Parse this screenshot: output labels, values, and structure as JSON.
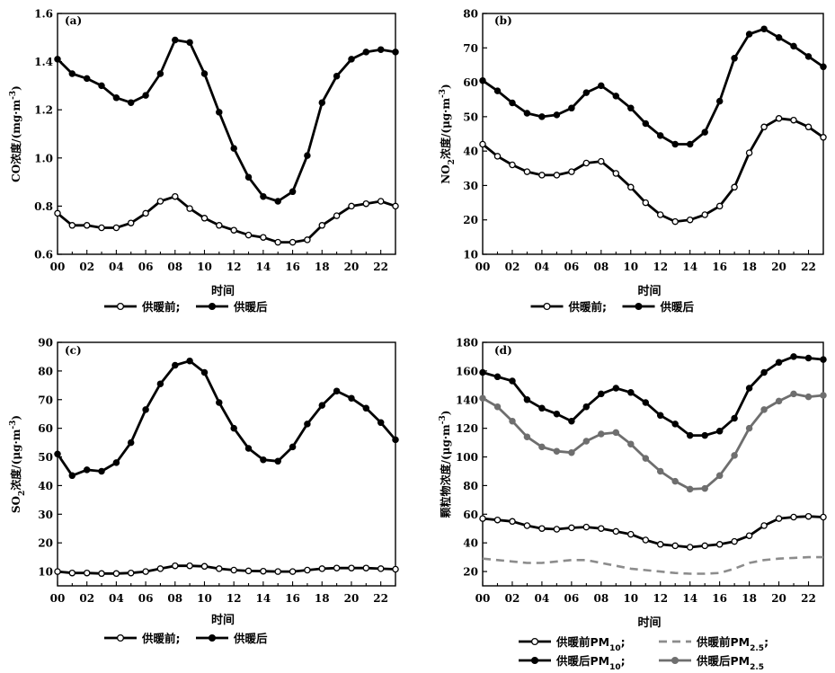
{
  "chart_data": [
    {
      "panel": "(a)",
      "type": "line",
      "xlabel": "时间",
      "ylabel": "CO浓度/(mg·m⁻³)",
      "ylim": [
        0.6,
        1.6
      ],
      "yticks": [
        "0.6",
        "0.8",
        "1.0",
        "1.2",
        "1.4",
        "1.6"
      ],
      "x": [
        0,
        1,
        2,
        3,
        4,
        5,
        6,
        7,
        8,
        9,
        10,
        11,
        12,
        13,
        14,
        15,
        16,
        17,
        18,
        19,
        20,
        21,
        22,
        23
      ],
      "xticks": [
        "00",
        "02",
        "04",
        "06",
        "08",
        "10",
        "12",
        "14",
        "16",
        "18",
        "20",
        "22"
      ],
      "series": [
        {
          "name": "供暖前;",
          "color": "#000000",
          "marker": "open",
          "values": [
            0.77,
            0.72,
            0.72,
            0.71,
            0.71,
            0.73,
            0.77,
            0.82,
            0.84,
            0.79,
            0.75,
            0.72,
            0.7,
            0.68,
            0.67,
            0.65,
            0.65,
            0.66,
            0.72,
            0.76,
            0.8,
            0.81,
            0.82,
            0.8
          ]
        },
        {
          "name": "供暖后",
          "color": "#000000",
          "marker": "filled",
          "values": [
            1.41,
            1.35,
            1.33,
            1.3,
            1.25,
            1.23,
            1.26,
            1.35,
            1.49,
            1.48,
            1.35,
            1.19,
            1.04,
            0.92,
            0.84,
            0.82,
            0.86,
            1.01,
            1.23,
            1.34,
            1.41,
            1.44,
            1.45,
            1.44
          ]
        }
      ],
      "legend": [
        "供暖前;",
        "供暖后"
      ]
    },
    {
      "panel": "(b)",
      "type": "line",
      "xlabel": "时间",
      "ylabel": "NO₂浓度/(μg·m⁻³)",
      "ylim": [
        10,
        80
      ],
      "yticks": [
        "10",
        "20",
        "30",
        "40",
        "50",
        "60",
        "70",
        "80"
      ],
      "x": [
        0,
        1,
        2,
        3,
        4,
        5,
        6,
        7,
        8,
        9,
        10,
        11,
        12,
        13,
        14,
        15,
        16,
        17,
        18,
        19,
        20,
        21,
        22,
        23
      ],
      "xticks": [
        "00",
        "02",
        "04",
        "06",
        "08",
        "10",
        "12",
        "14",
        "16",
        "18",
        "20",
        "22"
      ],
      "series": [
        {
          "name": "供暖前;",
          "color": "#000000",
          "marker": "open",
          "values": [
            42,
            38.5,
            36,
            34,
            33,
            33,
            34,
            36.5,
            37,
            33.5,
            29.5,
            25,
            21.5,
            19.5,
            20,
            21.5,
            24,
            29.5,
            39.5,
            47,
            49.5,
            49,
            47,
            44
          ]
        },
        {
          "name": "供暖后",
          "color": "#000000",
          "marker": "filled",
          "values": [
            60.5,
            57.5,
            54,
            51,
            50,
            50.5,
            52.5,
            57,
            59,
            56,
            52.5,
            48,
            44.5,
            42,
            42,
            45.5,
            54.5,
            67,
            74,
            75.5,
            73,
            70.5,
            67.5,
            64.5
          ]
        }
      ],
      "legend": [
        "供暖前;",
        "供暖后"
      ]
    },
    {
      "panel": "(c)",
      "type": "line",
      "xlabel": "时间",
      "ylabel": "SO₂浓度/(μg·m⁻³)",
      "ylim": [
        5,
        90
      ],
      "yticks": [
        "10",
        "20",
        "30",
        "40",
        "50",
        "60",
        "70",
        "80",
        "90"
      ],
      "x": [
        0,
        1,
        2,
        3,
        4,
        5,
        6,
        7,
        8,
        9,
        10,
        11,
        12,
        13,
        14,
        15,
        16,
        17,
        18,
        19,
        20,
        21,
        22,
        23
      ],
      "xticks": [
        "00",
        "02",
        "04",
        "06",
        "08",
        "10",
        "12",
        "14",
        "16",
        "18",
        "20",
        "22"
      ],
      "series": [
        {
          "name": "供暖前;",
          "color": "#000000",
          "marker": "open",
          "values": [
            10,
            9.5,
            9.5,
            9.3,
            9.3,
            9.5,
            10,
            11,
            12,
            12,
            11.8,
            11,
            10.5,
            10.2,
            10.1,
            10,
            10,
            10.5,
            11,
            11.2,
            11.2,
            11.2,
            11,
            10.8
          ]
        },
        {
          "name": "供暖后",
          "color": "#000000",
          "marker": "filled",
          "values": [
            51,
            43.5,
            45.5,
            45,
            48,
            55,
            66.5,
            75.5,
            82,
            83.5,
            79.5,
            69,
            60,
            53,
            49,
            48.5,
            53.5,
            61.5,
            68,
            73,
            70.5,
            67,
            62,
            56
          ]
        }
      ],
      "legend": [
        "供暖前;",
        "供暖后"
      ]
    },
    {
      "panel": "(d)",
      "type": "line",
      "xlabel": "时间",
      "ylabel": "颗粒物浓度/(μg·m⁻³)",
      "ylim": [
        10,
        180
      ],
      "yticks": [
        "20",
        "40",
        "60",
        "80",
        "100",
        "120",
        "140",
        "160",
        "180"
      ],
      "x": [
        0,
        1,
        2,
        3,
        4,
        5,
        6,
        7,
        8,
        9,
        10,
        11,
        12,
        13,
        14,
        15,
        16,
        17,
        18,
        19,
        20,
        21,
        22,
        23
      ],
      "xticks": [
        "00",
        "02",
        "04",
        "06",
        "08",
        "10",
        "12",
        "14",
        "16",
        "18",
        "20",
        "22"
      ],
      "series": [
        {
          "name": "供暖前PM10;",
          "color": "#000000",
          "marker": "open",
          "values": [
            57,
            56,
            55,
            52,
            50,
            49.5,
            50.5,
            51,
            50,
            48,
            46,
            42,
            39,
            38,
            37,
            38,
            39,
            41,
            45,
            52,
            57,
            58,
            58.5,
            58
          ]
        },
        {
          "name": "供暖前PM2.5;",
          "color": "#8c8c8c",
          "marker": "none",
          "dash": true,
          "values": [
            29,
            28,
            27,
            26,
            26,
            27,
            28,
            28,
            26,
            24,
            22,
            21,
            20,
            19,
            18.5,
            18.5,
            19,
            22,
            26,
            28,
            29,
            29.5,
            30,
            30
          ]
        },
        {
          "name": "供暖后PM10;",
          "color": "#000000",
          "marker": "filled",
          "values": [
            159,
            156,
            153,
            140,
            134,
            130,
            125,
            135,
            144,
            148,
            145,
            138,
            129,
            123,
            115,
            115,
            118,
            127,
            148,
            159,
            166,
            170,
            169,
            168
          ]
        },
        {
          "name": "供暖后PM2.5",
          "color": "#6e6e6e",
          "marker": "filled",
          "values": [
            141,
            135,
            125,
            114,
            107,
            104,
            103,
            111,
            116,
            117,
            109,
            99,
            90,
            83,
            77.5,
            78,
            87,
            101,
            120,
            133,
            139,
            144,
            142,
            143
          ]
        }
      ],
      "legend_rows": [
        [
          {
            "main": "供暖前PM",
            "sub": "10",
            "tail": ";"
          },
          {
            "main": "供暖前PM",
            "sub": "2.5",
            "tail": ";"
          }
        ],
        [
          {
            "main": "供暖后PM",
            "sub": "10",
            "tail": ";"
          },
          {
            "main": "供暖后PM",
            "sub": "2.5",
            "tail": ""
          }
        ]
      ]
    }
  ]
}
